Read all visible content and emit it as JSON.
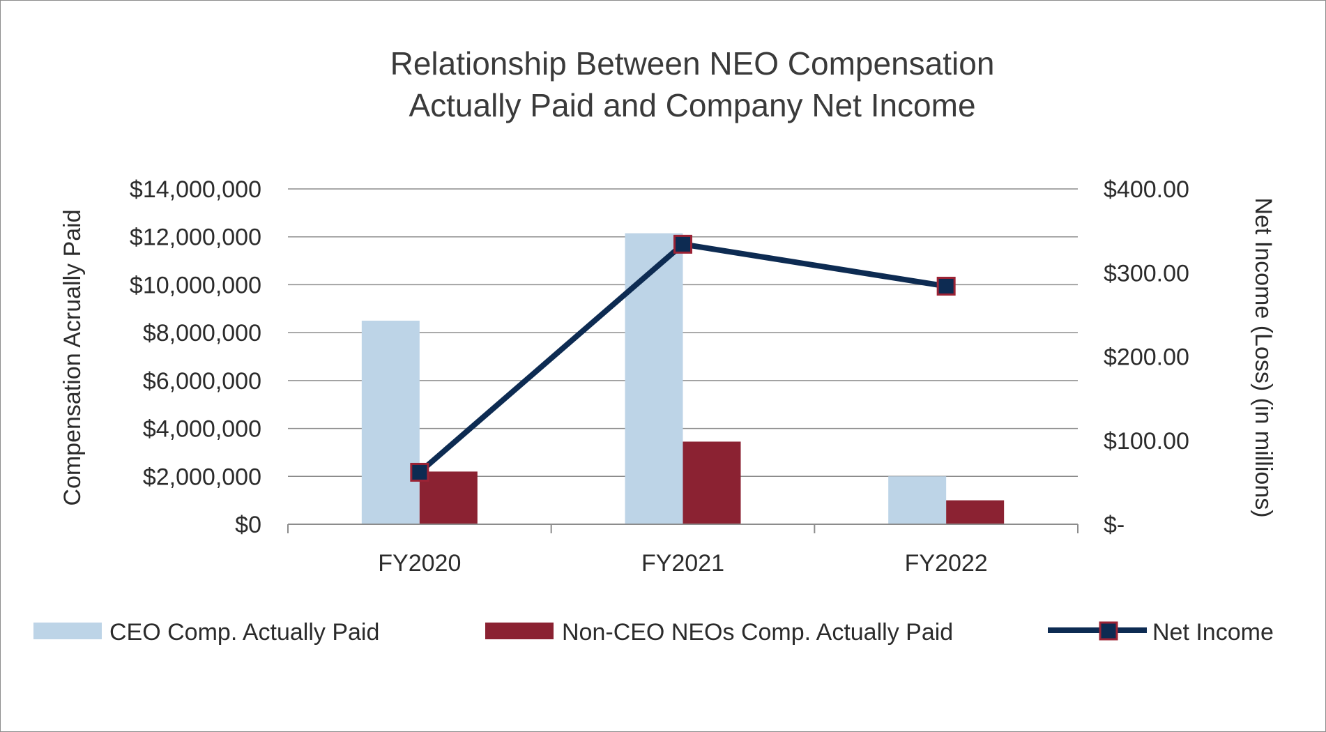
{
  "chart_data": {
    "type": "bar",
    "title_lines": [
      "Relationship Between NEO Compensation",
      "Actually Paid and Company Net Income"
    ],
    "categories": [
      "FY2020",
      "FY2021",
      "FY2022"
    ],
    "ylabel": "Compensation Acrually Paid",
    "y2label": "Net Income (Loss) (in millions)",
    "ylim": [
      0,
      14000000
    ],
    "y2lim": [
      0,
      400
    ],
    "y_ticks": [
      0,
      2000000,
      4000000,
      6000000,
      8000000,
      10000000,
      12000000,
      14000000
    ],
    "y_tick_labels": [
      "$0",
      "$2,000,000",
      "$4,000,000",
      "$6,000,000",
      "$8,000,000",
      "$10,000,000",
      "$12,000,000",
      "$14,000,000"
    ],
    "y2_ticks": [
      0,
      100,
      200,
      300,
      400
    ],
    "y2_tick_labels": [
      "$-",
      "$100.00",
      "$200.00",
      "$300.00",
      "$400.00"
    ],
    "grid": true,
    "legend_position": "bottom",
    "series": [
      {
        "name": "CEO Comp. Actually Paid",
        "type": "bar",
        "axis": "left",
        "color": "#bdd4e7",
        "values": [
          8500000,
          12150000,
          2000000
        ]
      },
      {
        "name": "Non-CEO NEOs Comp. Actually Paid",
        "type": "bar",
        "axis": "left",
        "color": "#8b2232",
        "values": [
          2200000,
          3450000,
          1000000
        ]
      },
      {
        "name": "Net Income",
        "type": "line",
        "axis": "right",
        "color": "#0d2b52",
        "marker_edge": "#9b2335",
        "values": [
          62,
          334,
          284
        ]
      }
    ]
  }
}
